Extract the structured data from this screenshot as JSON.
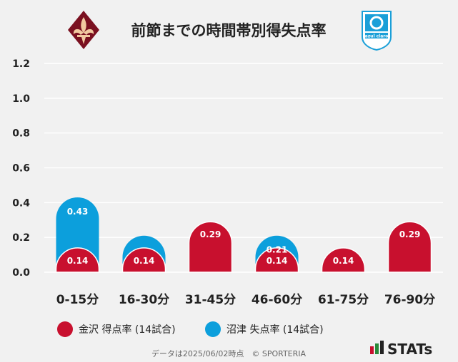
{
  "chart_data": {
    "type": "bar",
    "title": "前節までの時間帯別得失点率",
    "categories": [
      "0-15分",
      "16-30分",
      "31-45分",
      "46-60分",
      "61-75分",
      "76-90分"
    ],
    "series": [
      {
        "name": "金沢 得点率 (14試合)",
        "color": "#c8102e",
        "values": [
          0.14,
          0.14,
          0.29,
          0.14,
          0.14,
          0.29
        ],
        "labels": [
          "0.14",
          "0.14",
          "0.29",
          "0.14",
          "0.14",
          "0.29"
        ]
      },
      {
        "name": "沼津 失点率 (14試合)",
        "color": "#0c9fdc",
        "values": [
          0.43,
          0.21,
          0.29,
          0.21,
          0.14,
          0.29
        ],
        "labels": [
          "0.43",
          "",
          "",
          "0.21",
          "",
          ""
        ]
      }
    ],
    "ylim": [
      0,
      1.2
    ],
    "yticks": [
      "0.0",
      "0.2",
      "0.4",
      "0.6",
      "0.8",
      "1.0",
      "1.2"
    ],
    "grid": true,
    "legend": "bottom-left"
  },
  "logos": {
    "left": {
      "icon": "fleur-de-lis-crest-icon",
      "color": "#7a1020"
    },
    "right": {
      "icon": "club-emblem-icon",
      "color": "#1a9fd8",
      "text": "azul claro"
    }
  },
  "footer": {
    "text": "データは2025/06/02時点　© SPORTERIA"
  },
  "branding": {
    "stats": "STATs"
  }
}
